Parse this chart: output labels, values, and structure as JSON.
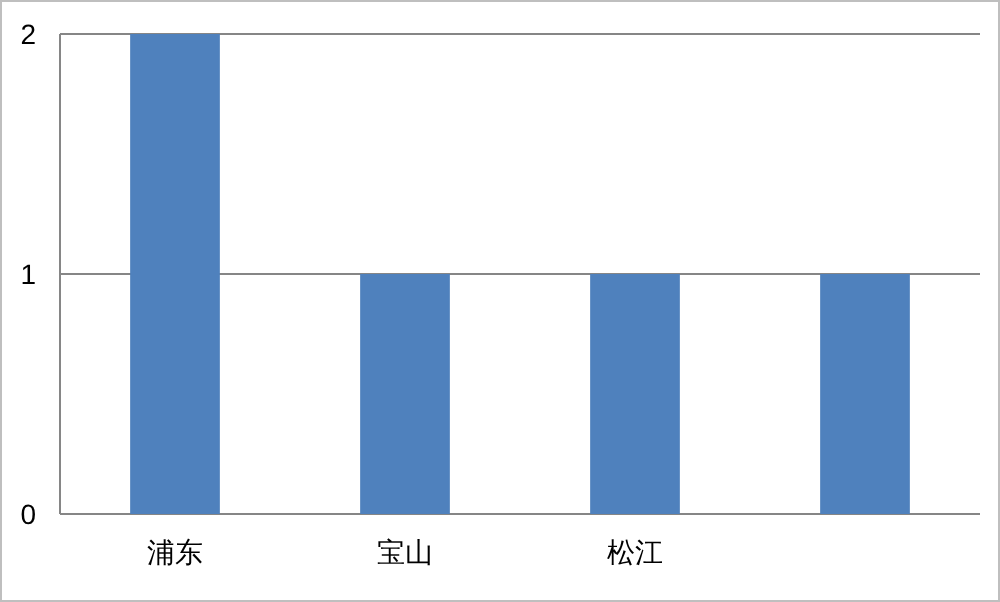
{
  "chart_data": {
    "type": "bar",
    "categories": [
      "浦东",
      "宝山",
      "松江",
      null
    ],
    "values": [
      2,
      1,
      1,
      1
    ],
    "color": "#4f81bd",
    "ylim": [
      0,
      2
    ],
    "yticks": [
      0,
      1,
      2
    ],
    "grid": "y"
  }
}
